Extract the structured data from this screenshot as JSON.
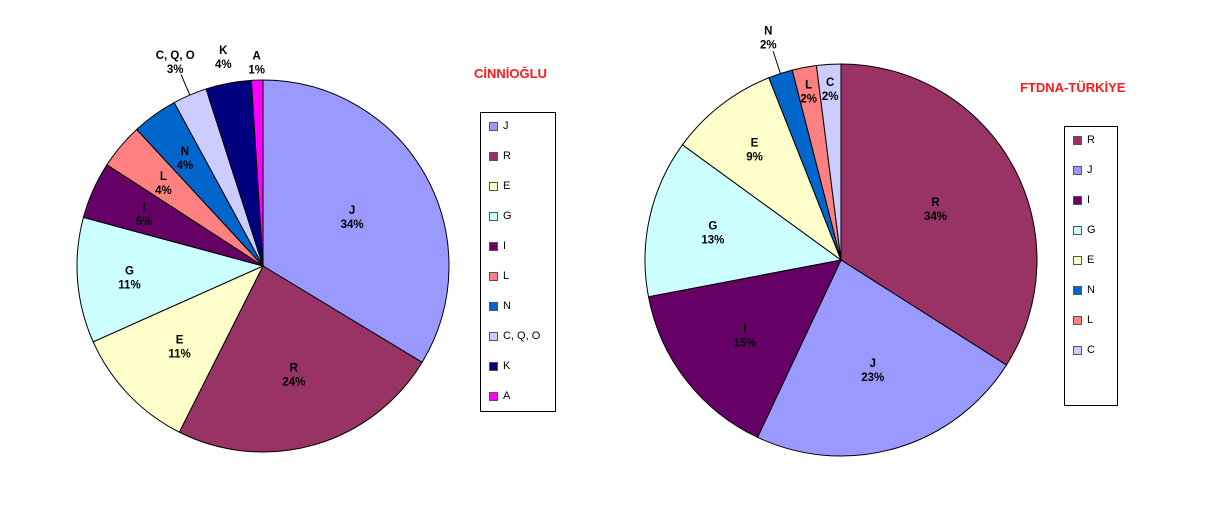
{
  "chart_data": [
    {
      "type": "pie",
      "title": "CİNNİOĞLU",
      "categories": [
        "J",
        "R",
        "E",
        "G",
        "I",
        "L",
        "N",
        "C, Q, O",
        "K",
        "A"
      ],
      "values": [
        34,
        24,
        11,
        11,
        5,
        4,
        4,
        3,
        4,
        1
      ],
      "labels": [
        {
          "name": "J",
          "pct": "34%"
        },
        {
          "name": "R",
          "pct": "24%"
        },
        {
          "name": "E",
          "pct": "11%"
        },
        {
          "name": "G",
          "pct": "11%"
        },
        {
          "name": "I",
          "pct": "5%"
        },
        {
          "name": "L",
          "pct": "4%"
        },
        {
          "name": "N",
          "pct": "4%"
        },
        {
          "name": "C, Q, O",
          "pct": "3%"
        },
        {
          "name": "K",
          "pct": "4%"
        },
        {
          "name": "A",
          "pct": "1%"
        }
      ],
      "colors": [
        "#9999ff",
        "#993366",
        "#ffffcc",
        "#ccffff",
        "#660066",
        "#ff8080",
        "#0066cc",
        "#ccccff",
        "#000080",
        "#ff00ff"
      ],
      "legend": [
        "J",
        "R",
        "E",
        "G",
        "I",
        "L",
        "N",
        "C, Q, O",
        "K",
        "A"
      ],
      "legend_position": "right"
    },
    {
      "type": "pie",
      "title": "FTDNA-TÜRKİYE",
      "categories": [
        "R",
        "J",
        "I",
        "G",
        "E",
        "N",
        "L",
        "C"
      ],
      "values": [
        34,
        23,
        15,
        13,
        9,
        2,
        2,
        2
      ],
      "labels": [
        {
          "name": "R",
          "pct": "34%"
        },
        {
          "name": "J",
          "pct": "23%"
        },
        {
          "name": "I",
          "pct": "15%"
        },
        {
          "name": "G",
          "pct": "13%"
        },
        {
          "name": "E",
          "pct": "9%"
        },
        {
          "name": "N",
          "pct": "2%"
        },
        {
          "name": "L",
          "pct": "2%"
        },
        {
          "name": "C",
          "pct": "2%"
        }
      ],
      "colors": [
        "#993366",
        "#9999ff",
        "#660066",
        "#ccffff",
        "#ffffcc",
        "#0066cc",
        "#ff8080",
        "#ccccff"
      ],
      "legend": [
        "R",
        "J",
        "I",
        "G",
        "E",
        "N",
        "L",
        "C"
      ],
      "legend_position": "right"
    }
  ]
}
